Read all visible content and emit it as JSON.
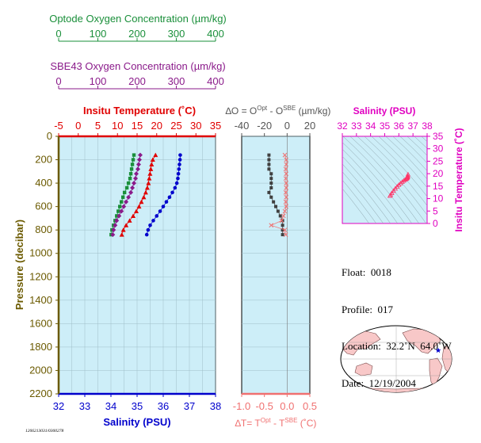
{
  "colors": {
    "optode": "#1a8f3a",
    "sbe43": "#8a1a8a",
    "temperature": "#e00000",
    "salinity": "#0000cc",
    "pressure": "#6b5a00",
    "delta": "#f07070",
    "delta_points": "#404040",
    "ts_axis": "#e000c0",
    "ts_points": "#ff3366",
    "panel_bg": "#cdeef8",
    "land": "#f8c8c8",
    "ocean": "#ffffff"
  },
  "icons": {
    "float_location": "blue-star-icon"
  },
  "footer_id": "1206213031/0300278",
  "info": {
    "float": "Float:  0018",
    "profile": "Profile:  017",
    "location": "Location:  32.2˚N  64.0˚W",
    "date": "Date:  12/19/2004"
  },
  "chart_data": [
    {
      "type": "scatter",
      "panel": "profile",
      "top_axes": [
        {
          "label": "Optode Oxygen Concentration (µm/kg)",
          "ticks": [
            "0",
            "100",
            "200",
            "300",
            "400"
          ],
          "range": [
            0,
            400
          ]
        },
        {
          "label": "SBE43 Oxygen Concentration (µm/kg)",
          "ticks": [
            "0",
            "100",
            "200",
            "300",
            "400"
          ],
          "range": [
            0,
            400
          ]
        },
        {
          "label": "Insitu Temperature (˚C)",
          "ticks": [
            "-5",
            "0",
            "5",
            "10",
            "15",
            "20",
            "25",
            "30",
            "35"
          ],
          "range": [
            -5,
            35
          ]
        }
      ],
      "xlabel": "Salinity (PSU)",
      "xticks": [
        "32",
        "33",
        "34",
        "35",
        "36",
        "37",
        "38"
      ],
      "xlim": [
        32,
        38
      ],
      "ylabel": "Pressure (decibar)",
      "yticks": [
        "0",
        "200",
        "400",
        "600",
        "800",
        "1000",
        "1200",
        "1400",
        "1600",
        "1800",
        "2000",
        "2200"
      ],
      "ylim": [
        2200,
        0
      ],
      "grid": true,
      "series": [
        {
          "key": "temperature",
          "pressure": [
            160,
            200,
            240,
            280,
            320,
            360,
            400,
            440,
            480,
            520,
            560,
            600,
            640,
            680,
            720,
            760,
            800,
            840
          ],
          "values": [
            19.7,
            19.0,
            18.7,
            18.5,
            18.3,
            18.1,
            17.9,
            17.6,
            17.2,
            16.7,
            16.1,
            15.5,
            14.8,
            14.0,
            13.1,
            12.2,
            11.5,
            11.1
          ]
        },
        {
          "key": "salinity",
          "pressure": [
            160,
            200,
            240,
            280,
            320,
            360,
            400,
            440,
            480,
            520,
            560,
            600,
            640,
            680,
            720,
            760,
            800,
            840
          ],
          "values": [
            36.65,
            36.64,
            36.62,
            36.6,
            36.58,
            36.56,
            36.52,
            36.45,
            36.35,
            36.24,
            36.12,
            36.0,
            35.88,
            35.75,
            35.62,
            35.5,
            35.42,
            35.37
          ]
        },
        {
          "key": "optode",
          "pressure": [
            160,
            200,
            240,
            280,
            320,
            360,
            400,
            440,
            480,
            520,
            560,
            600,
            640,
            680,
            720,
            760,
            800,
            840
          ],
          "values": [
            192,
            190,
            188,
            186,
            184,
            182,
            178,
            174,
            168,
            164,
            160,
            156,
            152,
            148,
            144,
            140,
            136,
            134
          ]
        },
        {
          "key": "sbe43",
          "pressure": [
            160,
            200,
            240,
            280,
            320,
            360,
            400,
            440,
            480,
            520,
            560,
            600,
            640,
            680,
            720,
            760,
            800,
            840
          ],
          "values": [
            208,
            206,
            204,
            202,
            198,
            196,
            192,
            188,
            184,
            178,
            172,
            166,
            160,
            154,
            148,
            144,
            140,
            138
          ]
        }
      ]
    },
    {
      "type": "scatter",
      "panel": "difference",
      "top_label": "∆O = O^Opt - O^SBE (µm/kg)",
      "top_ticks": [
        "-40",
        "-20",
        "0",
        "20"
      ],
      "top_range": [
        -40,
        20
      ],
      "xlabel": "∆T= T^Opt - T^SBE (˚C)",
      "xticks": [
        "-1.0",
        "-0.5",
        "0.0",
        "0.5"
      ],
      "xlim": [
        -1.0,
        0.5
      ],
      "series": [
        {
          "key": "delta_o",
          "pressure": [
            160,
            200,
            240,
            280,
            320,
            360,
            400,
            440,
            480,
            520,
            560,
            600,
            640,
            680,
            720,
            760,
            800,
            840
          ],
          "values": [
            -16,
            -16,
            -16,
            -16,
            -14,
            -14,
            -14,
            -14,
            -16,
            -14,
            -12,
            -10,
            -8,
            -6,
            -4,
            -4,
            -4,
            -4
          ]
        },
        {
          "key": "delta_t",
          "pressure": [
            160,
            200,
            240,
            280,
            320,
            360,
            400,
            440,
            480,
            520,
            560,
            600,
            640,
            680,
            720,
            760,
            800,
            840
          ],
          "values": [
            -0.05,
            -0.02,
            -0.02,
            -0.03,
            -0.02,
            -0.03,
            -0.02,
            -0.02,
            -0.03,
            -0.02,
            -0.03,
            -0.02,
            -0.05,
            -0.08,
            -0.12,
            -0.35,
            -0.05,
            -0.03
          ]
        }
      ]
    },
    {
      "type": "scatter",
      "panel": "ts",
      "xlabel": "Salinity (PSU)",
      "xticks": [
        "32",
        "33",
        "34",
        "35",
        "36",
        "37",
        "38"
      ],
      "xlim": [
        32,
        38
      ],
      "ylabel": "Insitu Temperature (˚C)",
      "yticks": [
        "0",
        "5",
        "10",
        "15",
        "20",
        "25",
        "30",
        "35"
      ],
      "ylim": [
        0,
        35
      ],
      "series": [
        {
          "key": "ts",
          "salinity": [
            36.65,
            36.64,
            36.62,
            36.6,
            36.58,
            36.56,
            36.52,
            36.45,
            36.35,
            36.24,
            36.12,
            36.0,
            35.88,
            35.75,
            35.62,
            35.5,
            35.42,
            35.37
          ],
          "temperature": [
            19.7,
            19.0,
            18.7,
            18.5,
            18.3,
            18.1,
            17.9,
            17.6,
            17.2,
            16.7,
            16.1,
            15.5,
            14.8,
            14.0,
            13.1,
            12.2,
            11.5,
            11.1
          ]
        }
      ]
    }
  ]
}
